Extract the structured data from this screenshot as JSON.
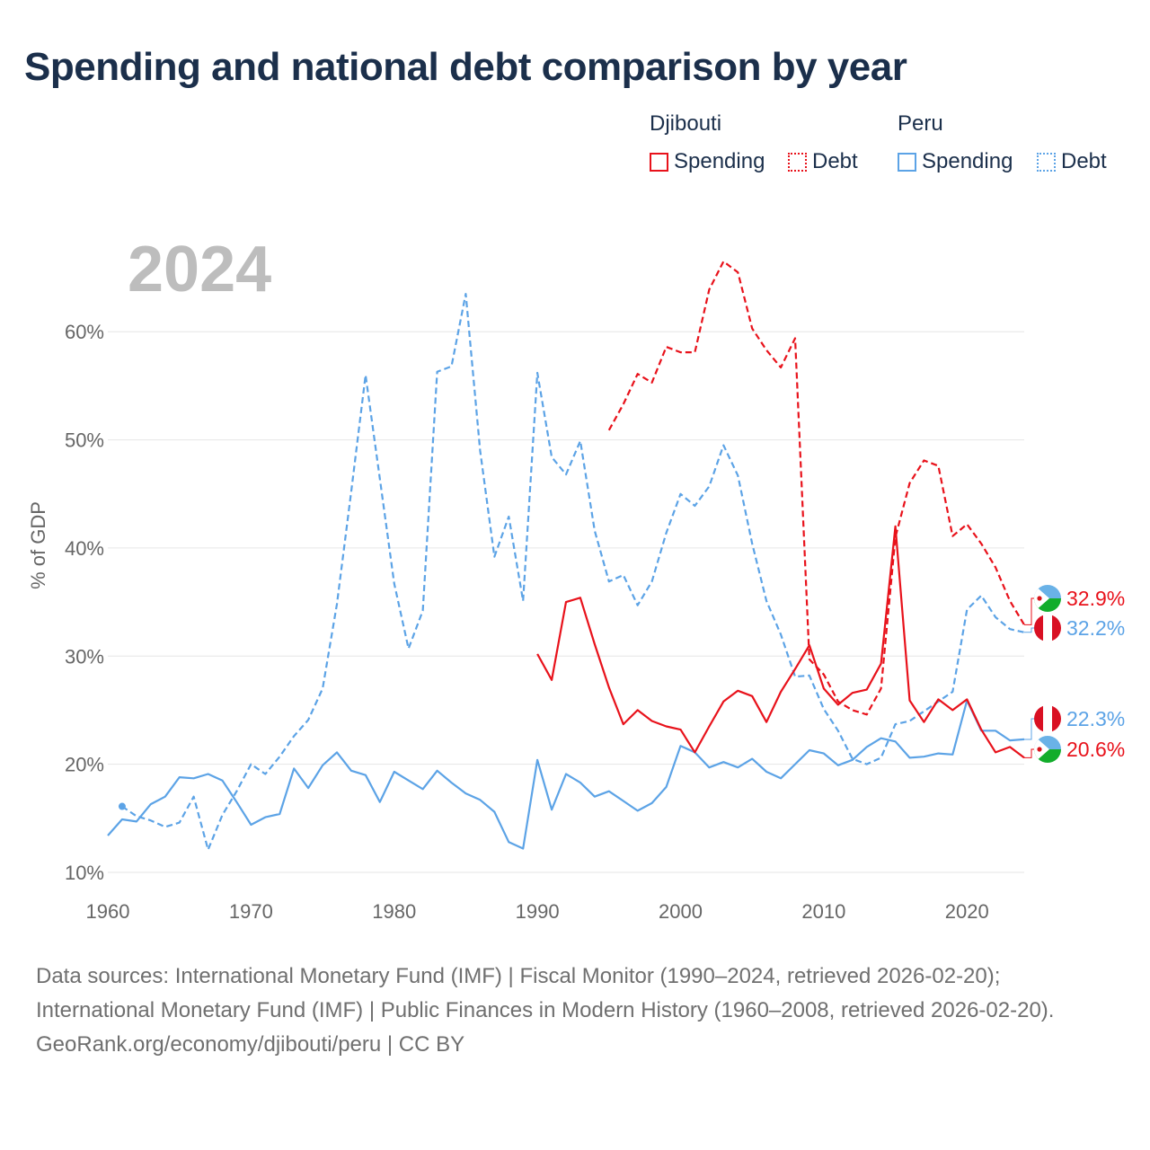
{
  "title": "Spending and national debt comparison by year",
  "year_label": "2024",
  "legend": {
    "groups": [
      {
        "name": "Djibouti",
        "items": [
          {
            "label": "Spending",
            "style": "solid",
            "color": "#e8121b"
          },
          {
            "label": "Debt",
            "style": "dotted",
            "color": "#e8121b"
          }
        ]
      },
      {
        "name": "Peru",
        "items": [
          {
            "label": "Spending",
            "style": "solid",
            "color": "#5ca3e6"
          },
          {
            "label": "Debt",
            "style": "dotted",
            "color": "#5ca3e6"
          }
        ]
      }
    ]
  },
  "footer": {
    "sources": "Data sources: International Monetary Fund (IMF) | Fiscal Monitor (1990–2024, retrieved 2026-02-20); International Monetary Fund (IMF) | Public Finances in Modern History (1960–2008, retrieved 2026-02-20).",
    "credit": "GeoRank.org/economy/djibouti/peru | CC BY"
  },
  "chart_data": {
    "type": "line",
    "title": "Spending and national debt comparison by year",
    "xlabel": "",
    "ylabel": "% of GDP",
    "xlim": [
      1960,
      2024
    ],
    "ylim": [
      9,
      67
    ],
    "x_ticks": [
      1960,
      1970,
      1980,
      1990,
      2000,
      2010,
      2020
    ],
    "y_ticks": [
      10,
      20,
      30,
      40,
      50,
      60
    ],
    "y_tick_labels": [
      "10%",
      "20%",
      "30%",
      "40%",
      "50%",
      "60%"
    ],
    "grid": true,
    "series": [
      {
        "name": "Peru Spending",
        "country": "Peru",
        "measure": "Spending",
        "color": "#5ca3e6",
        "dashed": false,
        "x": [
          1960,
          1961,
          1962,
          1963,
          1964,
          1965,
          1966,
          1967,
          1968,
          1969,
          1970,
          1971,
          1972,
          1973,
          1974,
          1975,
          1976,
          1977,
          1978,
          1979,
          1980,
          1981,
          1982,
          1983,
          1984,
          1985,
          1986,
          1987,
          1988,
          1989,
          1990,
          1991,
          1992,
          1993,
          1994,
          1995,
          1996,
          1997,
          1998,
          1999,
          2000,
          2001,
          2002,
          2003,
          2004,
          2005,
          2006,
          2007,
          2008,
          2009,
          2010,
          2011,
          2012,
          2013,
          2014,
          2015,
          2016,
          2017,
          2018,
          2019,
          2020,
          2021,
          2022,
          2023,
          2024
        ],
        "y": [
          13.4,
          14.9,
          14.7,
          16.3,
          17.0,
          18.8,
          18.7,
          19.1,
          18.5,
          16.5,
          14.4,
          15.1,
          15.4,
          19.6,
          17.8,
          19.9,
          21.1,
          19.4,
          19.0,
          16.5,
          19.3,
          18.5,
          17.7,
          19.4,
          18.3,
          17.3,
          16.7,
          15.6,
          12.8,
          12.2,
          20.4,
          15.8,
          19.1,
          18.3,
          17.0,
          17.5,
          16.6,
          15.7,
          16.4,
          17.9,
          21.7,
          21.1,
          19.7,
          20.2,
          19.7,
          20.5,
          19.3,
          18.7,
          20.0,
          21.3,
          21.0,
          19.9,
          20.4,
          21.6,
          22.4,
          22.1,
          20.6,
          20.7,
          21.0,
          20.9,
          25.9,
          23.1,
          23.1,
          22.2,
          22.3
        ]
      },
      {
        "name": "Peru Debt",
        "country": "Peru",
        "measure": "Debt",
        "color": "#5ca3e6",
        "dashed": true,
        "x": [
          1961,
          1962,
          1963,
          1964,
          1965,
          1966,
          1967,
          1968,
          1969,
          1970,
          1971,
          1972,
          1973,
          1974,
          1975,
          1976,
          1977,
          1978,
          1979,
          1980,
          1981,
          1982,
          1983,
          1984,
          1985,
          1986,
          1987,
          1988,
          1989,
          1990,
          1991,
          1992,
          1993,
          1994,
          1995,
          1996,
          1997,
          1998,
          1999,
          2000,
          2001,
          2002,
          2003,
          2004,
          2005,
          2006,
          2007,
          2008,
          2009,
          2010,
          2011,
          2012,
          2013,
          2014,
          2015,
          2016,
          2017,
          2018,
          2019,
          2020,
          2021,
          2022,
          2023,
          2024
        ],
        "y": [
          16.1,
          15.2,
          14.8,
          14.2,
          14.6,
          17.0,
          12.1,
          15.3,
          17.5,
          20.0,
          19.1,
          20.7,
          22.6,
          24.1,
          27.0,
          34.8,
          45.2,
          56.0,
          46.4,
          36.7,
          30.7,
          34.2,
          56.3,
          56.8,
          63.5,
          49.0,
          39.2,
          42.9,
          35.1,
          56.2,
          48.4,
          46.8,
          49.9,
          41.6,
          36.9,
          37.5,
          34.7,
          36.9,
          41.4,
          45.0,
          43.9,
          45.7,
          49.5,
          46.7,
          40.4,
          35.1,
          32.0,
          28.1,
          28.2,
          25.1,
          23.1,
          20.5,
          20.0,
          20.6,
          23.7,
          24.0,
          24.9,
          25.8,
          26.7,
          34.3,
          35.6,
          33.6,
          32.5,
          32.2
        ],
        "start_marker": true
      },
      {
        "name": "Djibouti Spending",
        "country": "Djibouti",
        "measure": "Spending",
        "color": "#e8121b",
        "dashed": false,
        "x": [
          1990,
          1991,
          1992,
          1993,
          1994,
          1995,
          1996,
          1997,
          1998,
          1999,
          2000,
          2001,
          2002,
          2003,
          2004,
          2005,
          2006,
          2007,
          2008,
          2009,
          2010,
          2011,
          2012,
          2013,
          2014,
          2015,
          2016,
          2017,
          2018,
          2019,
          2020,
          2021,
          2022,
          2023,
          2024
        ],
        "y": [
          30.2,
          27.8,
          35.0,
          35.4,
          31.1,
          27.1,
          23.7,
          25.0,
          24.0,
          23.5,
          23.2,
          21.1,
          23.5,
          25.8,
          26.8,
          26.3,
          23.9,
          26.7,
          28.8,
          31.0,
          27.0,
          25.5,
          26.6,
          26.9,
          29.3,
          42.0,
          25.9,
          23.9,
          26.0,
          25.0,
          26.0,
          23.2,
          21.1,
          21.6,
          20.6
        ]
      },
      {
        "name": "Djibouti Debt",
        "country": "Djibouti",
        "measure": "Debt",
        "color": "#e8121b",
        "dashed": true,
        "x": [
          1995,
          1996,
          1997,
          1998,
          1999,
          2000,
          2001,
          2002,
          2003,
          2004,
          2005,
          2006,
          2007,
          2008,
          2009,
          2010,
          2011,
          2012,
          2013,
          2014,
          2015,
          2016,
          2017,
          2018,
          2019,
          2020,
          2021,
          2022,
          2023,
          2024
        ],
        "y": [
          50.9,
          53.3,
          56.1,
          55.3,
          58.6,
          58.1,
          58.1,
          63.9,
          66.5,
          65.5,
          60.3,
          58.3,
          56.7,
          59.4,
          29.7,
          28.3,
          25.8,
          25.0,
          24.6,
          27.0,
          41.0,
          46.0,
          48.1,
          47.6,
          41.1,
          42.2,
          40.4,
          38.2,
          35.1,
          32.9
        ]
      }
    ],
    "end_labels": [
      {
        "text": "32.9%",
        "value": 32.9,
        "color": "#e8121b",
        "flag": "djibouti"
      },
      {
        "text": "32.2%",
        "value": 32.2,
        "color": "#5ca3e6",
        "flag": "peru"
      },
      {
        "text": "22.3%",
        "value": 22.3,
        "color": "#5ca3e6",
        "flag": "peru"
      },
      {
        "text": "20.6%",
        "value": 20.6,
        "color": "#e8121b",
        "flag": "djibouti"
      }
    ],
    "colors": {
      "grid": "#e6e6e6",
      "axis_text": "#666666",
      "year_text": "#bdbdbd",
      "djibouti_blue": "#6ab2e7",
      "djibouti_green": "#12ad2b",
      "peru_red": "#d91023"
    }
  }
}
